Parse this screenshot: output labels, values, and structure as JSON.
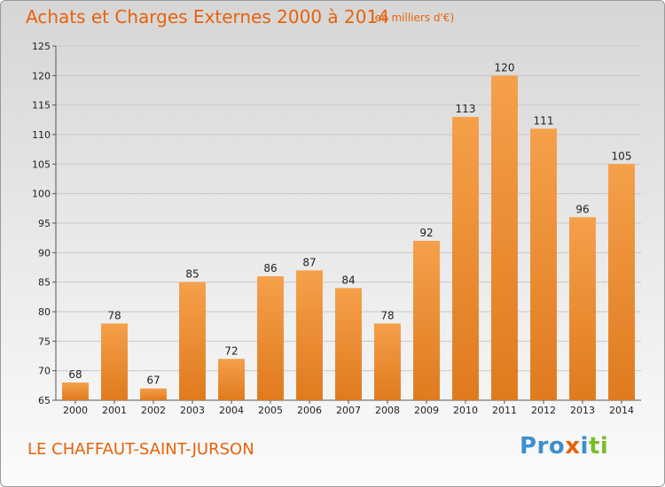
{
  "chart_data": {
    "type": "bar",
    "title": "Achats et Charges Externes 2000 à 2014",
    "subtitle": "(en milliers d'€)",
    "categories": [
      "2000",
      "2001",
      "2002",
      "2003",
      "2004",
      "2005",
      "2006",
      "2007",
      "2008",
      "2009",
      "2010",
      "2011",
      "2012",
      "2013",
      "2014"
    ],
    "values": [
      68,
      78,
      67,
      85,
      72,
      86,
      87,
      84,
      78,
      92,
      113,
      120,
      111,
      96,
      105
    ],
    "ylim": [
      65,
      125
    ],
    "yticks": [
      65,
      70,
      75,
      80,
      85,
      90,
      95,
      100,
      105,
      110,
      115,
      120,
      125
    ],
    "grid": true,
    "bar_color": "#f5a04a",
    "bar_color_dark": "#e07a1e",
    "grid_color": "#c8c8c8"
  },
  "place_name": "LE CHAFFAUT-SAINT-JURSON",
  "brand": {
    "p1": "Pro",
    "p2": "x",
    "p3": "i",
    "p4": "ti"
  }
}
